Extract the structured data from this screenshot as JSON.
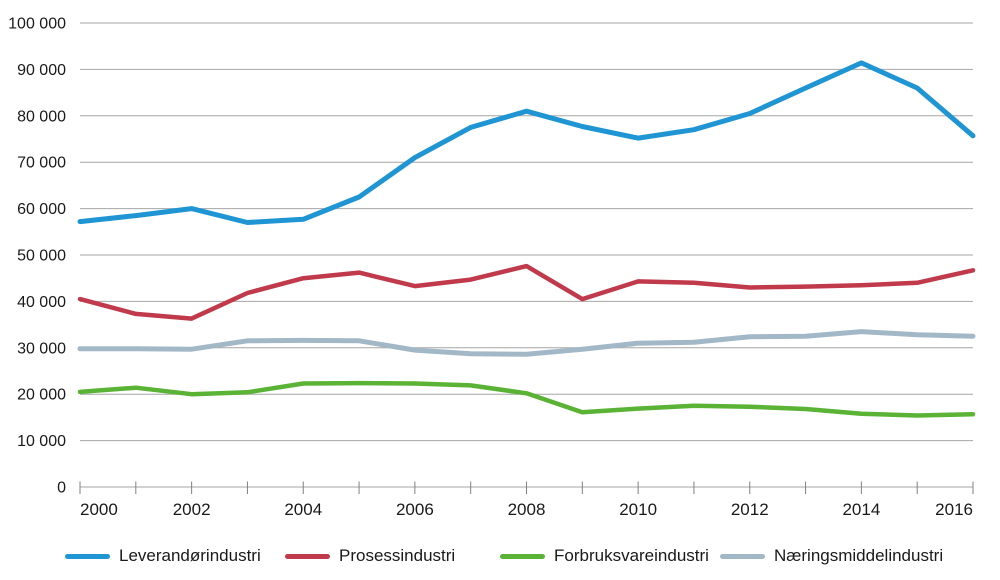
{
  "chart_data": {
    "type": "line",
    "title": "",
    "xlabel": "",
    "ylabel": "",
    "x": [
      2000,
      2001,
      2002,
      2003,
      2004,
      2005,
      2006,
      2007,
      2008,
      2009,
      2010,
      2011,
      2012,
      2013,
      2014,
      2015,
      2016
    ],
    "series": [
      {
        "name": "Leverandørindustri",
        "color": "#1F95D4",
        "width": 5,
        "values": [
          57200,
          58500,
          60000,
          57000,
          57700,
          62500,
          71000,
          77500,
          81000,
          77700,
          75200,
          77000,
          80500,
          86000,
          91400,
          86000,
          75700
        ]
      },
      {
        "name": "Prosessindustri",
        "color": "#C13A4C",
        "width": 4.5,
        "values": [
          40500,
          37300,
          36300,
          41800,
          45000,
          46200,
          43300,
          44700,
          47600,
          40500,
          44300,
          44000,
          43000,
          43200,
          43500,
          44000,
          46700
        ]
      },
      {
        "name": "Forbruksvareindustri",
        "color": "#5AB335",
        "width": 4.5,
        "values": [
          20500,
          21400,
          20000,
          20400,
          22300,
          22400,
          22300,
          21900,
          20200,
          16100,
          16900,
          17500,
          17300,
          16800,
          15800,
          15400,
          15700
        ]
      },
      {
        "name": "Næringsmiddelindustri",
        "color": "#A3B8C7",
        "width": 5,
        "values": [
          29800,
          29800,
          29700,
          31500,
          31600,
          31500,
          29500,
          28700,
          28600,
          29700,
          31000,
          31200,
          32400,
          32500,
          33500,
          32800,
          32500
        ]
      }
    ],
    "ylim": [
      0,
      100000
    ],
    "y_tick_step": 10000,
    "y_tick_labels": [
      "0",
      "10 000",
      "20 000",
      "30 000",
      "40 000",
      "50 000",
      "60 000",
      "70 000",
      "80 000",
      "90 000",
      "100 000"
    ],
    "x_tick_labels": [
      "2000",
      "2002",
      "2004",
      "2006",
      "2008",
      "2010",
      "2012",
      "2014",
      "2016"
    ],
    "grid": "horizontal",
    "legend_position": "bottom",
    "colors": {
      "gridline": "#A6A6A6",
      "axis": "#808080",
      "tick_label": "#1a1a1a"
    }
  }
}
